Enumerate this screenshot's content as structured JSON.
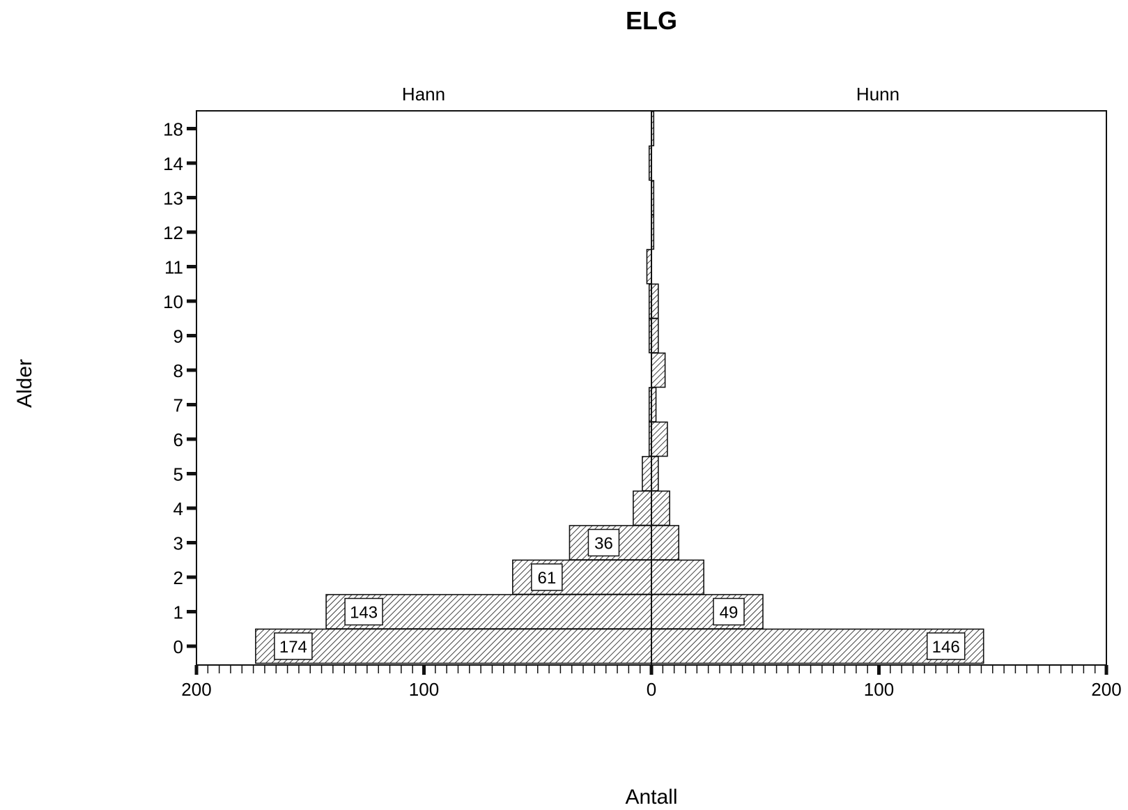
{
  "chart_data": {
    "type": "bar",
    "orientation": "horizontal",
    "layout": "population-pyramid",
    "title": "ELG",
    "xlabel": "Antall",
    "ylabel": "Alder",
    "xlim": [
      -200,
      200
    ],
    "x_ticks": [
      {
        "value": -200,
        "label": "200"
      },
      {
        "value": -100,
        "label": "100"
      },
      {
        "value": 0,
        "label": "0"
      },
      {
        "value": 100,
        "label": "100"
      },
      {
        "value": 200,
        "label": "200"
      }
    ],
    "categories": [
      "0",
      "1",
      "2",
      "3",
      "4",
      "5",
      "6",
      "7",
      "8",
      "9",
      "10",
      "11",
      "12",
      "13",
      "14",
      "18"
    ],
    "series": [
      {
        "name": "Hann",
        "side": "left",
        "values": [
          174,
          143,
          61,
          36,
          8,
          4,
          1,
          1,
          0,
          1,
          1,
          2,
          0,
          0,
          1,
          0
        ],
        "data_labels": [
          "174",
          "143",
          "61",
          "36",
          "",
          "",
          "",
          "",
          "",
          "",
          "",
          "",
          "",
          "",
          "",
          ""
        ]
      },
      {
        "name": "Hunn",
        "side": "right",
        "values": [
          146,
          49,
          23,
          12,
          8,
          3,
          7,
          2,
          6,
          3,
          3,
          0,
          1,
          1,
          0,
          1
        ],
        "data_labels": [
          "146",
          "49",
          "",
          "",
          "",
          "",
          "",
          "",
          "",
          "",
          "",
          "",
          "",
          "",
          "",
          ""
        ]
      }
    ],
    "fill": "diagonal-hatch",
    "grid": false,
    "colors": {
      "ink": "#111111",
      "background": "#ffffff"
    }
  }
}
